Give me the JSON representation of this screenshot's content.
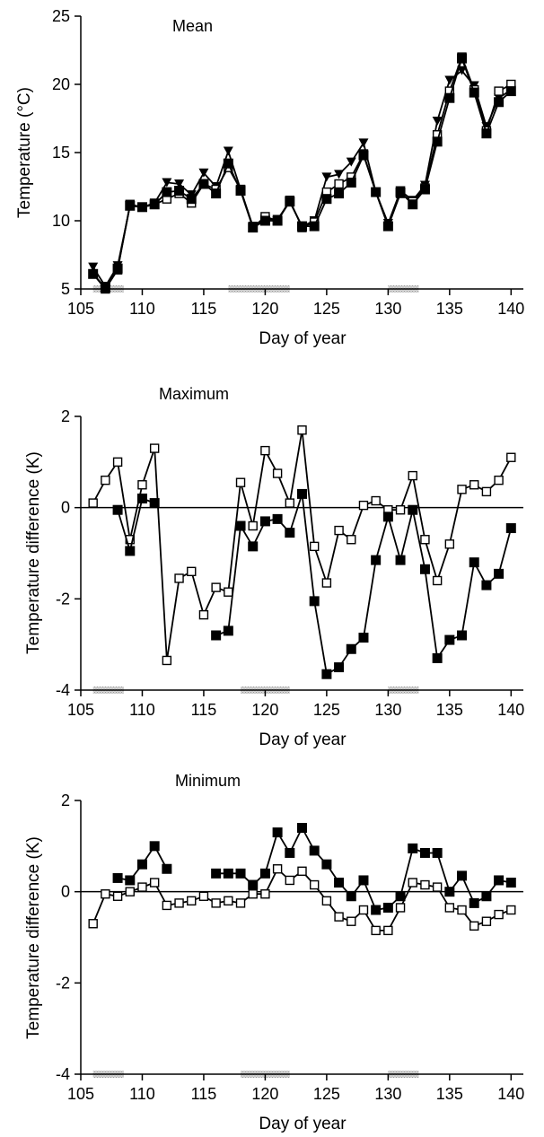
{
  "chart_data": [
    {
      "type": "line",
      "title": "Mean",
      "xlabel": "Day of year",
      "ylabel": "Temperature (°C)",
      "xlim": [
        105,
        141
      ],
      "ylim": [
        5,
        25
      ],
      "xticks": [
        105,
        110,
        115,
        120,
        125,
        130,
        135,
        140
      ],
      "yticks": [
        5,
        10,
        15,
        20,
        25
      ],
      "shaded_x_ranges": [
        [
          106,
          108.5
        ],
        [
          117,
          122
        ],
        [
          130,
          132.5
        ]
      ],
      "series": [
        {
          "marker": "triangle-down-filled",
          "color": "#000000",
          "x": [
            106,
            107,
            108,
            109,
            110,
            111,
            112,
            113,
            114,
            115,
            116,
            117,
            118,
            119,
            120,
            121,
            122,
            123,
            124,
            125,
            126,
            127,
            128,
            129,
            130,
            131,
            132,
            133,
            134,
            135,
            136,
            137,
            138,
            139,
            140
          ],
          "y": [
            6.6,
            5.2,
            6.7,
            11.1,
            11.0,
            11.3,
            12.8,
            12.7,
            11.9,
            13.5,
            12.5,
            15.1,
            12.3,
            9.6,
            10.1,
            10.1,
            11.4,
            9.6,
            10.0,
            13.2,
            13.4,
            14.3,
            15.7,
            12.1,
            9.8,
            12.2,
            11.5,
            12.6,
            17.3,
            20.3,
            21.0,
            19.9,
            16.9,
            19.0,
            19.6
          ]
        },
        {
          "marker": "square-open",
          "color": "#000000",
          "x": [
            106,
            107,
            108,
            109,
            110,
            111,
            112,
            113,
            114,
            115,
            116,
            117,
            118,
            119,
            120,
            121,
            122,
            123,
            124,
            125,
            126,
            127,
            128,
            129,
            130,
            131,
            132,
            133,
            134,
            135,
            136,
            137,
            138,
            139,
            140
          ],
          "y": [
            6.1,
            5.0,
            6.4,
            11.2,
            11.0,
            11.2,
            11.6,
            12.0,
            11.3,
            12.7,
            12.3,
            13.9,
            12.3,
            9.5,
            10.3,
            10.0,
            11.5,
            9.5,
            9.9,
            12.1,
            12.7,
            13.2,
            14.9,
            12.1,
            9.6,
            12.0,
            11.4,
            12.4,
            16.3,
            19.5,
            22.0,
            19.6,
            16.6,
            19.5,
            20.0
          ]
        },
        {
          "marker": "square-filled",
          "color": "#000000",
          "x": [
            106,
            107,
            108,
            109,
            110,
            111,
            112,
            113,
            114,
            115,
            116,
            117,
            118,
            119,
            120,
            121,
            122,
            123,
            124,
            125,
            126,
            127,
            128,
            129,
            130,
            131,
            132,
            133,
            134,
            135,
            136,
            137,
            138,
            139,
            140
          ],
          "y": [
            6.1,
            5.1,
            6.5,
            11.1,
            11.0,
            11.2,
            12.1,
            12.2,
            11.6,
            12.7,
            12.0,
            14.2,
            12.2,
            9.5,
            10.0,
            10.0,
            11.4,
            9.6,
            9.6,
            11.6,
            12.0,
            12.8,
            14.8,
            12.1,
            9.6,
            12.1,
            11.2,
            12.3,
            15.8,
            19.0,
            21.9,
            19.4,
            16.4,
            18.7,
            19.5
          ]
        }
      ]
    },
    {
      "type": "line",
      "title": "Maximum",
      "xlabel": "Day of year",
      "ylabel": "Temperature difference (K)",
      "xlim": [
        105,
        141
      ],
      "ylim": [
        -4,
        2
      ],
      "xticks": [
        105,
        110,
        115,
        120,
        125,
        130,
        135,
        140
      ],
      "yticks": [
        -4,
        -2,
        0,
        2
      ],
      "zero_line": true,
      "shaded_x_ranges": [
        [
          106,
          108.5
        ],
        [
          118,
          122
        ],
        [
          130,
          132.5
        ]
      ],
      "series": [
        {
          "marker": "square-open",
          "color": "#000000",
          "x": [
            106,
            107,
            108,
            109,
            110,
            111,
            112,
            113,
            114,
            115,
            116,
            117,
            118,
            119,
            120,
            121,
            122,
            123,
            124,
            125,
            126,
            127,
            128,
            129,
            130,
            131,
            132,
            133,
            134,
            135,
            136,
            137,
            138,
            139,
            140
          ],
          "y": [
            0.1,
            0.6,
            1.0,
            -0.7,
            0.5,
            1.3,
            -3.35,
            -1.55,
            -1.4,
            -2.35,
            -1.75,
            -1.85,
            0.55,
            -0.4,
            1.25,
            0.75,
            0.1,
            1.7,
            -0.85,
            -1.65,
            -0.5,
            -0.7,
            0.05,
            0.15,
            -0.05,
            -0.05,
            0.7,
            -0.7,
            -1.6,
            -0.8,
            0.4,
            0.5,
            0.35,
            0.6,
            1.1
          ]
        },
        {
          "marker": "square-filled",
          "color": "#000000",
          "x": [
            108,
            109,
            110,
            111,
            null,
            116,
            117,
            118,
            119,
            120,
            121,
            122,
            123,
            124,
            125,
            126,
            127,
            128,
            129,
            130,
            131,
            132,
            133,
            134,
            135,
            136,
            137,
            138,
            139,
            140
          ],
          "y": [
            -0.05,
            -0.95,
            0.2,
            0.1,
            null,
            -2.8,
            -2.7,
            -0.4,
            -0.85,
            -0.3,
            -0.25,
            -0.55,
            0.3,
            -2.05,
            -3.65,
            -3.5,
            -3.1,
            -2.85,
            -1.15,
            -0.2,
            -1.15,
            -0.05,
            -1.35,
            -3.3,
            -2.9,
            -2.8,
            -1.2,
            -1.7,
            -1.45,
            -0.45
          ]
        }
      ]
    },
    {
      "type": "line",
      "title": "Minimum",
      "xlabel": "Day of year",
      "ylabel": "Temperature difference (K)",
      "xlim": [
        105,
        141
      ],
      "ylim": [
        -4,
        2
      ],
      "xticks": [
        105,
        110,
        115,
        120,
        125,
        130,
        135,
        140
      ],
      "yticks": [
        -4,
        -2,
        0,
        2
      ],
      "zero_line": true,
      "shaded_x_ranges": [
        [
          106,
          108.5
        ],
        [
          118,
          122
        ],
        [
          130,
          132.5
        ]
      ],
      "series": [
        {
          "marker": "square-open",
          "color": "#000000",
          "x": [
            106,
            107,
            108,
            109,
            110,
            111,
            112,
            113,
            114,
            115,
            116,
            117,
            118,
            119,
            120,
            121,
            122,
            123,
            124,
            125,
            126,
            127,
            128,
            129,
            130,
            131,
            132,
            133,
            134,
            135,
            136,
            137,
            138,
            139,
            140
          ],
          "y": [
            -0.7,
            -0.05,
            -0.1,
            0.0,
            0.1,
            0.2,
            -0.3,
            -0.25,
            -0.2,
            -0.1,
            -0.25,
            -0.2,
            -0.25,
            -0.05,
            -0.05,
            0.5,
            0.25,
            0.45,
            0.15,
            -0.2,
            -0.55,
            -0.65,
            -0.4,
            -0.85,
            -0.85,
            -0.35,
            0.2,
            0.15,
            0.1,
            -0.35,
            -0.4,
            -0.75,
            -0.65,
            -0.5,
            -0.4
          ]
        },
        {
          "marker": "square-filled",
          "color": "#000000",
          "x": [
            108,
            109,
            110,
            111,
            112,
            null,
            116,
            117,
            118,
            119,
            120,
            121,
            122,
            123,
            124,
            125,
            126,
            127,
            128,
            129,
            130,
            131,
            132,
            133,
            134,
            135,
            136,
            137,
            138,
            139,
            140
          ],
          "y": [
            0.3,
            0.25,
            0.6,
            1.0,
            0.5,
            null,
            0.4,
            0.4,
            0.4,
            0.15,
            0.4,
            1.3,
            0.85,
            1.4,
            0.9,
            0.6,
            0.2,
            -0.1,
            0.25,
            -0.4,
            -0.35,
            -0.1,
            0.95,
            0.85,
            0.85,
            0.0,
            0.35,
            -0.25,
            -0.1,
            0.25,
            0.2
          ]
        }
      ]
    }
  ]
}
